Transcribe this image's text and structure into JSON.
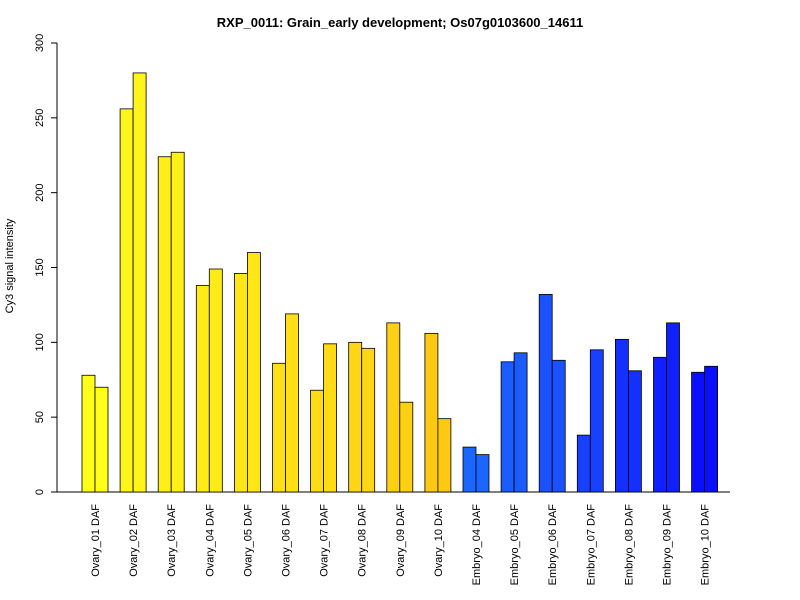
{
  "chart_data": {
    "type": "bar",
    "title": "RXP_0011: Grain_early development; Os07g0103600_14611",
    "xlabel": "",
    "ylabel": "Cy3 signal intensity",
    "ylim": [
      0,
      300
    ],
    "yticks": [
      0,
      50,
      100,
      150,
      200,
      250,
      300
    ],
    "grid": false,
    "legend": "none",
    "categories": [
      "Ovary_01 DAF",
      "Ovary_02 DAF",
      "Ovary_03 DAF",
      "Ovary_04 DAF",
      "Ovary_05 DAF",
      "Ovary_06 DAF",
      "Ovary_07 DAF",
      "Ovary_08 DAF",
      "Ovary_09 DAF",
      "Ovary_10 DAF",
      "Embryo_04 DAF",
      "Embryo_05 DAF",
      "Embryo_06 DAF",
      "Embryo_07 DAF",
      "Embryo_08 DAF",
      "Embryo_09 DAF",
      "Embryo_10 DAF"
    ],
    "series": [
      {
        "values": [
          78,
          256,
          224,
          138,
          146,
          86,
          68,
          100,
          113,
          106,
          30,
          87,
          132,
          38,
          102,
          90,
          80
        ]
      },
      {
        "values": [
          70,
          280,
          227,
          149,
          160,
          119,
          99,
          96,
          60,
          49,
          25,
          93,
          88,
          95,
          81,
          113,
          84
        ]
      }
    ],
    "bar_colors": [
      "#FFFF1A",
      "#FFF51A",
      "#FFEF19",
      "#FFEB18",
      "#FFE617",
      "#FFE016",
      "#FFDB16",
      "#FFD615",
      "#FFD014",
      "#FFC913",
      "#1A66FF",
      "#1A5CFF",
      "#1A52FF",
      "#1740FF",
      "#1430FF",
      "#1020FF",
      "#0A10FF"
    ]
  }
}
